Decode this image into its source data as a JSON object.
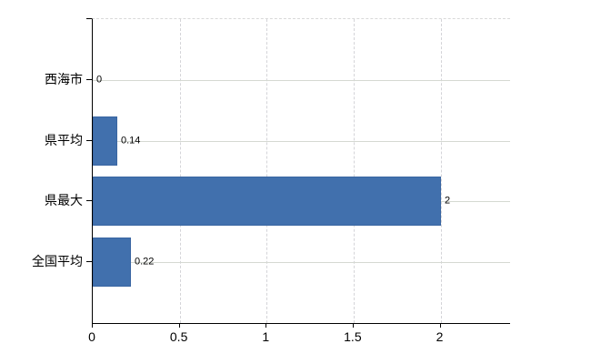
{
  "chart_data": {
    "type": "bar",
    "orientation": "horizontal",
    "title": "",
    "xlabel": "",
    "ylabel": "",
    "categories": [
      "西海市",
      "県平均",
      "県最大",
      "全国平均"
    ],
    "values": [
      0,
      0.14,
      2,
      0.22
    ],
    "data_labels": [
      "0",
      "0.14",
      "2",
      "0.22"
    ],
    "xlim": [
      0,
      2.4
    ],
    "x_ticks": [
      0,
      0.5,
      1,
      1.5,
      2
    ],
    "x_tick_labels": [
      "0",
      "0.5",
      "1",
      "1.5",
      "2"
    ],
    "grid": true,
    "legend": false,
    "colors": {
      "bar": "#4170ad",
      "bar_border": "#3a66a2",
      "axis": "#000000",
      "gridline_horizontal": "#d5d9d2",
      "gridline_vertical": "#d4d4d8",
      "plot_top_border": "#d9d9d9",
      "text": "#000000",
      "background": "#ffffff"
    }
  }
}
